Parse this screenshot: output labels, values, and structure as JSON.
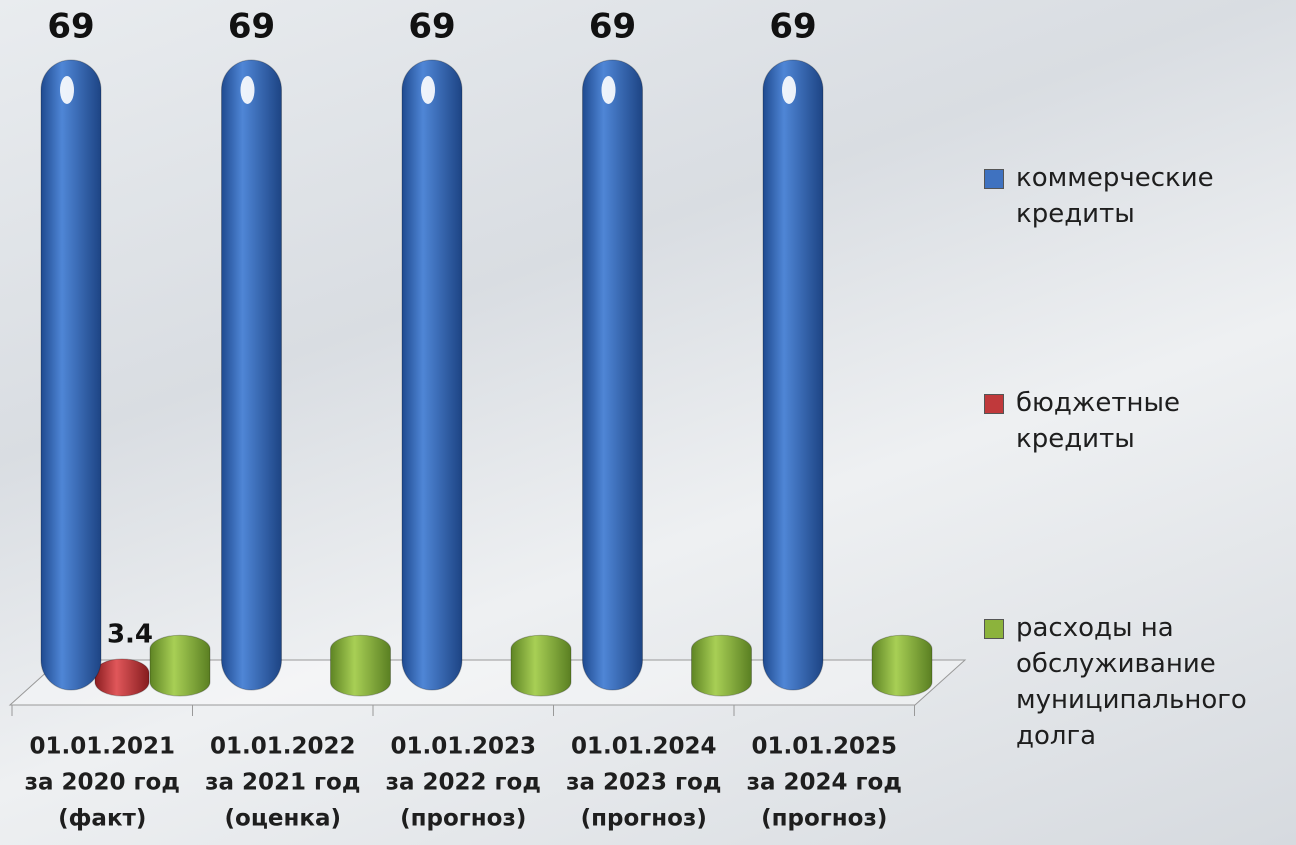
{
  "chart_data": {
    "type": "bar3d",
    "categories": [
      [
        "01.01.2021",
        "за 2020 год",
        "(факт)"
      ],
      [
        "01.01.2022",
        "за 2021 год",
        "(оценка)"
      ],
      [
        "01.01.2023",
        "за 2022 год",
        "(прогноз)"
      ],
      [
        "01.01.2024",
        "за 2023 год",
        "(прогноз)"
      ],
      [
        "01.01.2025",
        "за 2024 год",
        "(прогноз)"
      ]
    ],
    "series": [
      {
        "name": "коммерческие кредиты",
        "color": "#3f72c0",
        "values": [
          69,
          69,
          69,
          69,
          69
        ],
        "data_labels": true
      },
      {
        "name": "бюджетные кредиты",
        "color": "#c0393b",
        "values": [
          3.4,
          null,
          null,
          null,
          null
        ],
        "data_labels": true
      },
      {
        "name": "расходы на обслуживание муниципального долга",
        "color": "#8cb33c",
        "values": [
          6,
          6,
          6,
          6,
          6
        ],
        "data_labels": false
      }
    ],
    "legend": "right"
  }
}
